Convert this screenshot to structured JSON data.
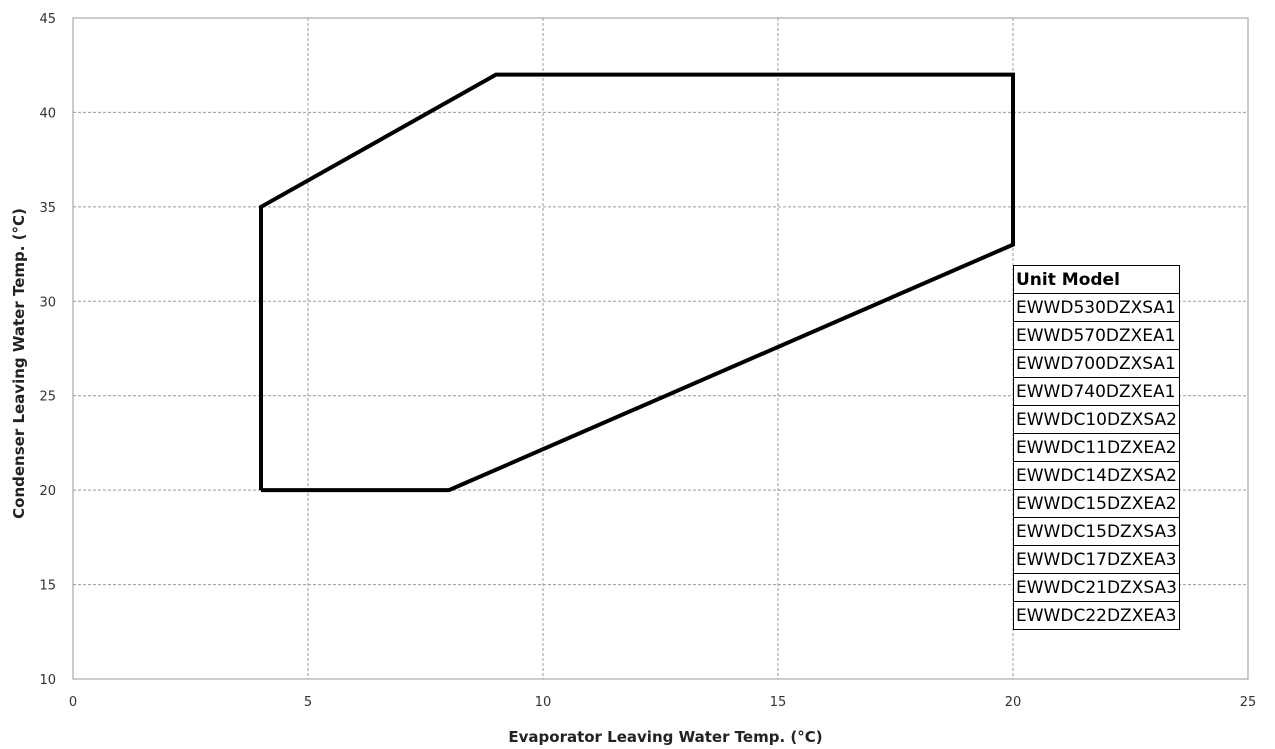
{
  "chart_data": {
    "type": "line",
    "title": "",
    "xlabel": "Evaporator Leaving  Water Temp.  (°C)",
    "ylabel": "Condenser Leaving Water Temp. (°C)",
    "xlim": [
      0,
      25
    ],
    "ylim": [
      10,
      45
    ],
    "xticks": [
      0,
      5,
      10,
      15,
      20,
      25
    ],
    "yticks": [
      10,
      15,
      20,
      25,
      30,
      35,
      40,
      45
    ],
    "grid": true,
    "series": [
      {
        "x": [
          4,
          4,
          9,
          20,
          20,
          8,
          4
        ],
        "y": [
          20,
          35,
          42,
          42,
          33,
          20,
          20
        ],
        "color": "#000000"
      }
    ]
  },
  "model_table": {
    "header": "Unit Model",
    "rows": [
      "EWWD530DZXSA1",
      "EWWD570DZXEA1",
      "EWWD700DZXSA1",
      "EWWD740DZXEA1",
      "EWWDC10DZXSA2",
      "EWWDC11DZXEA2",
      "EWWDC14DZXSA2",
      "EWWDC15DZXEA2",
      "EWWDC15DZXSA3",
      "EWWDC17DZXEA3",
      "EWWDC21DZXSA3",
      "EWWDC22DZXEA3"
    ]
  }
}
